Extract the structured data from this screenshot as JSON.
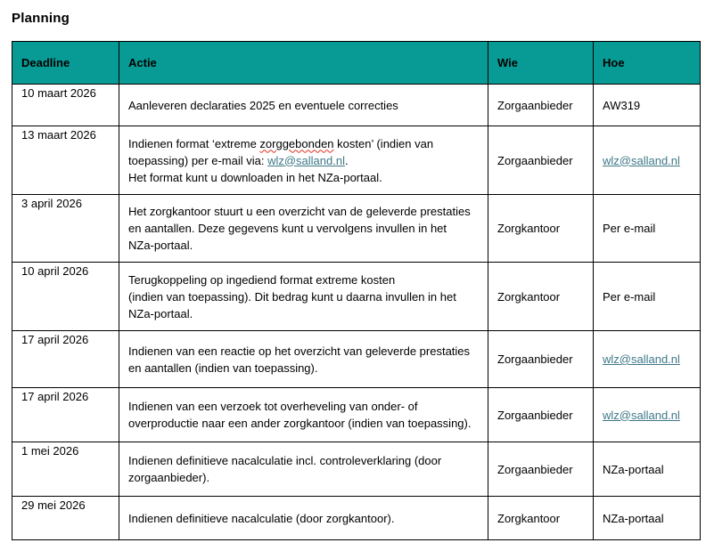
{
  "title": "Planning",
  "colors": {
    "header_bg": "#089a94",
    "link": "#3d7888",
    "squiggle": "#e03020",
    "border": "#000000"
  },
  "table": {
    "headers": [
      {
        "label": "Deadline"
      },
      {
        "label": "Actie"
      },
      {
        "label": "Wie"
      },
      {
        "label": "Hoe"
      }
    ],
    "rows": [
      {
        "deadline": "10 maart 2026",
        "actie": [
          [
            {
              "t": "Aanleveren declaraties 2025 en eventuele correcties",
              "s": "plain"
            }
          ]
        ],
        "wie": "Zorgaanbieder",
        "hoe": {
          "text": "AW319",
          "link": false
        }
      },
      {
        "deadline": "13 maart 2026",
        "actie": [
          [
            {
              "t": "Indienen format ‘extreme ",
              "s": "plain"
            },
            {
              "t": "zorggebonden",
              "s": "misspelled"
            },
            {
              "t": " kosten’ (indien van",
              "s": "plain"
            }
          ],
          [
            {
              "t": "toepassing) per e-mail via: ",
              "s": "plain"
            },
            {
              "t": "wlz@salland.nl",
              "s": "link"
            },
            {
              "t": ".",
              "s": "plain"
            }
          ],
          [
            {
              "t": "Het format kunt u downloaden in het NZa-portaal.",
              "s": "plain"
            }
          ]
        ],
        "wie": "Zorgaanbieder",
        "hoe": {
          "text": "wlz@salland.nl",
          "link": true
        }
      },
      {
        "deadline": "3 april 2026",
        "actie": [
          [
            {
              "t": "Het zorgkantoor stuurt u een overzicht van de geleverde prestaties",
              "s": "plain"
            }
          ],
          [
            {
              "t": "en aantallen. Deze gegevens kunt u vervolgens invullen in het",
              "s": "plain"
            }
          ],
          [
            {
              "t": "NZa-portaal.",
              "s": "plain"
            }
          ]
        ],
        "wie": "Zorgkantoor",
        "hoe": {
          "text": "Per e-mail",
          "link": false
        }
      },
      {
        "deadline": "10 april 2026",
        "actie": [
          [
            {
              "t": "Terugkoppeling op ingediend format extreme kosten",
              "s": "plain"
            }
          ],
          [
            {
              "t": "(indien van toepassing). Dit bedrag kunt u daarna invullen in het",
              "s": "plain"
            }
          ],
          [
            {
              "t": "NZa-portaal.",
              "s": "plain"
            }
          ]
        ],
        "wie": "Zorgkantoor",
        "hoe": {
          "text": "Per e-mail",
          "link": false
        }
      },
      {
        "deadline": "17 april 2026",
        "actie": [
          [
            {
              "t": "Indienen van een reactie op het overzicht van geleverde prestaties",
              "s": "plain"
            }
          ],
          [
            {
              "t": "en aantallen (indien van toepassing).",
              "s": "plain"
            }
          ]
        ],
        "wie": "Zorgaanbieder",
        "hoe": {
          "text": "wlz@salland.nl",
          "link": true
        }
      },
      {
        "deadline": "17 april 2026",
        "actie": [
          [
            {
              "t": "Indienen van een verzoek tot overheveling van onder- of",
              "s": "plain"
            }
          ],
          [
            {
              "t": "overproductie naar een ander zorgkantoor (indien van toepassing).",
              "s": "plain"
            }
          ]
        ],
        "wie": "Zorgaanbieder",
        "hoe": {
          "text": "wlz@salland.nl",
          "link": true
        }
      },
      {
        "deadline": "1 mei 2026",
        "actie": [
          [
            {
              "t": "Indienen definitieve nacalculatie incl. controleverklaring (door",
              "s": "plain"
            }
          ],
          [
            {
              "t": "zorgaanbieder).",
              "s": "plain"
            }
          ]
        ],
        "wie": "Zorgaanbieder",
        "hoe": {
          "text": "NZa-portaal",
          "link": false
        }
      },
      {
        "deadline": "29 mei 2026",
        "actie": [
          [
            {
              "t": "Indienen definitieve nacalculatie (door zorgkantoor).",
              "s": "plain"
            }
          ]
        ],
        "wie": "Zorgkantoor",
        "hoe": {
          "text": "NZa-portaal",
          "link": false
        }
      }
    ]
  }
}
